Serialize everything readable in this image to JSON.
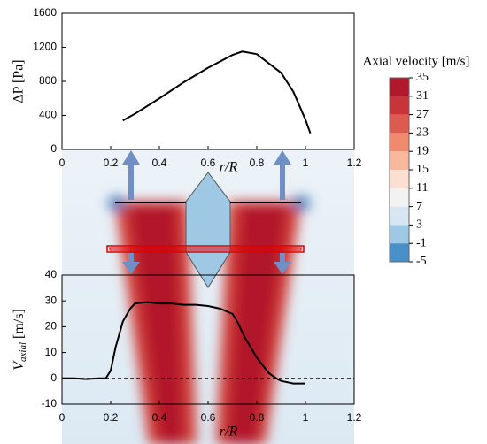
{
  "chart_data": [
    {
      "type": "line",
      "ylabel": "ΔP [Pa]",
      "xlabel": "r/R",
      "x": [
        0.25,
        0.3,
        0.4,
        0.5,
        0.6,
        0.7,
        0.74,
        0.8,
        0.9,
        0.95,
        1.0,
        1.02
      ],
      "series": [
        {
          "color": "#000000",
          "values": [
            340,
            420,
            600,
            790,
            960,
            1110,
            1150,
            1120,
            900,
            680,
            350,
            190
          ]
        }
      ],
      "xlim": [
        0,
        1.2
      ],
      "xticks": [
        0,
        0.2,
        0.4,
        0.6,
        0.8,
        1,
        1.2
      ],
      "ylim": [
        0,
        1600
      ],
      "yticks": [
        0,
        400,
        800,
        1200,
        1600
      ]
    },
    {
      "type": "line",
      "ylabel": "V",
      "ylabel_sub": "axial",
      "ylabel_unit": "[m/s]",
      "xlabel": "r/R",
      "x": [
        0,
        0.05,
        0.1,
        0.15,
        0.18,
        0.2,
        0.22,
        0.25,
        0.28,
        0.3,
        0.35,
        0.4,
        0.45,
        0.5,
        0.55,
        0.6,
        0.65,
        0.7,
        0.72,
        0.75,
        0.8,
        0.85,
        0.88,
        0.9,
        0.95,
        1.0
      ],
      "series": [
        {
          "color": "#000000",
          "values": [
            0,
            0,
            -0.3,
            0,
            0,
            3,
            12,
            22,
            27,
            29,
            29.5,
            29,
            29,
            28.5,
            28.5,
            28,
            27,
            25,
            22,
            16,
            8,
            2,
            0,
            -1,
            -2,
            -2
          ]
        }
      ],
      "reference_y": 0,
      "xlim": [
        0,
        1.2
      ],
      "xticks": [
        0,
        0.2,
        0.4,
        0.6,
        0.8,
        1,
        1.2
      ],
      "ylim": [
        -10,
        40
      ],
      "yticks": [
        -10,
        0,
        10,
        20,
        30,
        40
      ]
    }
  ],
  "colorbar": {
    "title": "Axial velocity [m/s]",
    "ticks": [
      35,
      31,
      27,
      23,
      19,
      15,
      11,
      7,
      3,
      -1,
      -5
    ],
    "colors": [
      "#b2182b",
      "#c9343a",
      "#dd5a4e",
      "#ef8a6f",
      "#f7b89e",
      "#fbe0d2",
      "#f2f2f2",
      "#d6e6f2",
      "#9ec8e3",
      "#4a90c8"
    ]
  }
}
